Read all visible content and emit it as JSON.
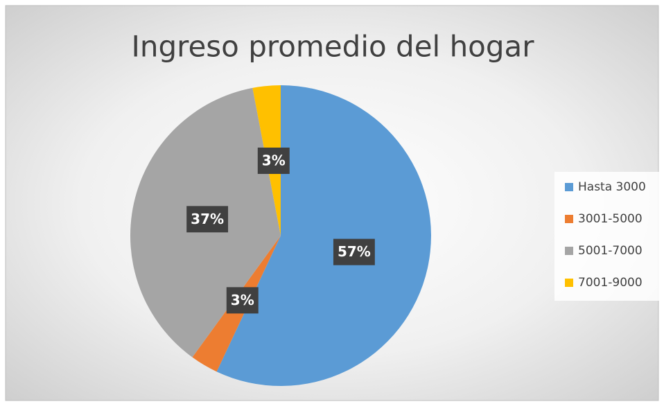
{
  "chart_data": {
    "type": "pie",
    "title": "Ingreso promedio del hogar",
    "categories": [
      "Hasta 3000",
      "3001-5000",
      "5001-7000",
      "7001-9000"
    ],
    "values": [
      57,
      3,
      37,
      3
    ],
    "value_labels": [
      "57%",
      "3%",
      "37%",
      "3%"
    ],
    "colors": [
      "#5b9bd5",
      "#ed7d31",
      "#a5a5a5",
      "#ffc000"
    ],
    "legend": "right"
  }
}
